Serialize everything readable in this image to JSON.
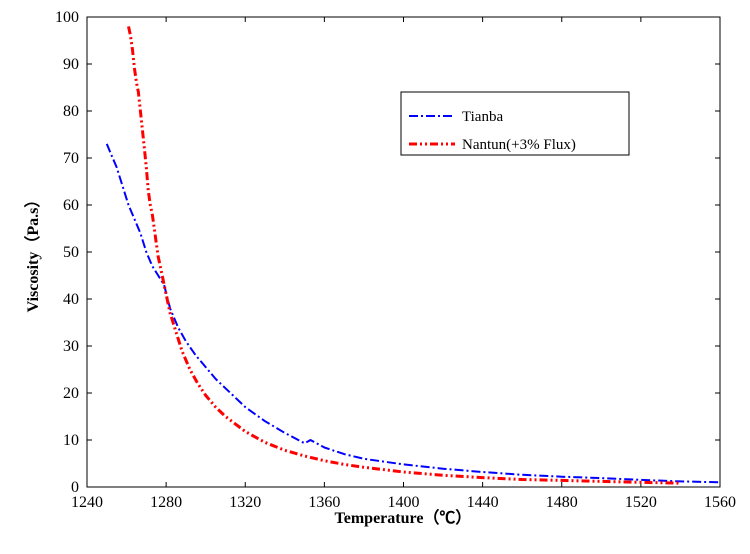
{
  "chart_data": {
    "type": "line",
    "title": "",
    "xlabel": "Temperature（℃）",
    "ylabel": "Viscosity（Pa.s）",
    "xlim": [
      1240,
      1560
    ],
    "ylim": [
      0,
      100
    ],
    "xticks": [
      1240,
      1280,
      1320,
      1360,
      1400,
      1440,
      1480,
      1520,
      1560
    ],
    "yticks": [
      0,
      10,
      20,
      30,
      40,
      50,
      60,
      70,
      80,
      90,
      100
    ],
    "grid": false,
    "legend_position": "top-right",
    "series": [
      {
        "name": "Tianba",
        "color": "#0000ff",
        "dash": "dash-dot",
        "x": [
          1250,
          1252,
          1255,
          1258,
          1261,
          1264,
          1267,
          1270,
          1273,
          1276,
          1279,
          1282,
          1286,
          1290,
          1295,
          1300,
          1305,
          1310,
          1320,
          1330,
          1340,
          1350,
          1353,
          1360,
          1370,
          1380,
          1400,
          1420,
          1440,
          1460,
          1480,
          1500,
          1520,
          1540,
          1560
        ],
        "y": [
          73,
          71,
          68,
          64,
          60,
          57,
          54,
          50,
          47,
          45,
          43,
          38,
          34,
          31,
          28,
          25.5,
          23,
          21,
          17,
          14,
          11.5,
          9.3,
          10,
          8.4,
          7,
          6,
          4.8,
          3.9,
          3.2,
          2.6,
          2.2,
          1.9,
          1.5,
          1.2,
          1.0
        ]
      },
      {
        "name": "Nantun(+3% Flux)",
        "color": "#ff0000",
        "dash": "dash-dot-dot",
        "x": [
          1261,
          1262,
          1263,
          1264,
          1265,
          1266,
          1267,
          1268,
          1269,
          1270,
          1271,
          1272,
          1273,
          1274,
          1275,
          1276,
          1278,
          1280,
          1282,
          1285,
          1288,
          1292,
          1296,
          1300,
          1305,
          1310,
          1320,
          1330,
          1340,
          1350,
          1360,
          1370,
          1380,
          1400,
          1420,
          1440,
          1460,
          1480,
          1500,
          1520,
          1540
        ],
        "y": [
          98,
          96,
          93,
          89,
          86,
          84,
          80,
          76,
          72,
          68,
          63,
          60,
          58,
          55,
          52,
          49,
          45,
          41,
          37,
          33,
          29,
          25,
          22,
          19.5,
          17,
          15,
          11.8,
          9.5,
          7.8,
          6.6,
          5.6,
          4.8,
          4.2,
          3.2,
          2.5,
          2.0,
          1.6,
          1.4,
          1.2,
          1.0,
          0.8
        ]
      }
    ]
  }
}
